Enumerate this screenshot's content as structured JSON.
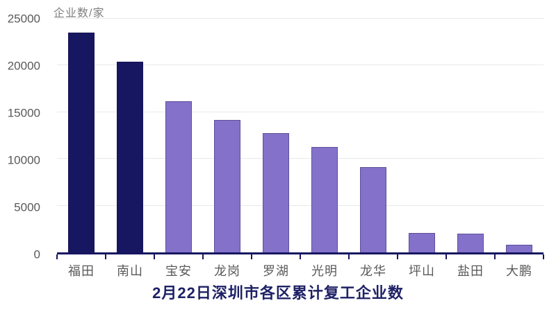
{
  "chart_data": {
    "type": "bar",
    "title": "2月22日深圳市各区累计复工企业数",
    "ylabel": "企业数/家",
    "xlabel": "",
    "categories": [
      "福田",
      "南山",
      "宝安",
      "龙岗",
      "罗湖",
      "光明",
      "龙华",
      "坪山",
      "盐田",
      "大鹏"
    ],
    "values": [
      23500,
      20400,
      16200,
      14200,
      12750,
      11250,
      9150,
      2100,
      2000,
      800
    ],
    "ylim": [
      0,
      25000
    ],
    "yticks": [
      0,
      5000,
      10000,
      15000,
      20000,
      25000
    ],
    "grid": true,
    "legend": false,
    "bar_colors": [
      "#171660",
      "#171660",
      "#8471C9",
      "#8471C9",
      "#8471C9",
      "#8471C9",
      "#8471C9",
      "#8471C9",
      "#8471C9",
      "#8471C9"
    ]
  },
  "colors": {
    "navy_bar": "#171660",
    "purple_bar": "#8471C9",
    "axis_line": "#171660",
    "grid_line": "#e9e9e9",
    "tick_label": "#595959",
    "axis_title": "#7f7f7f",
    "title_text": "#1f2166",
    "background": "#ffffff"
  }
}
